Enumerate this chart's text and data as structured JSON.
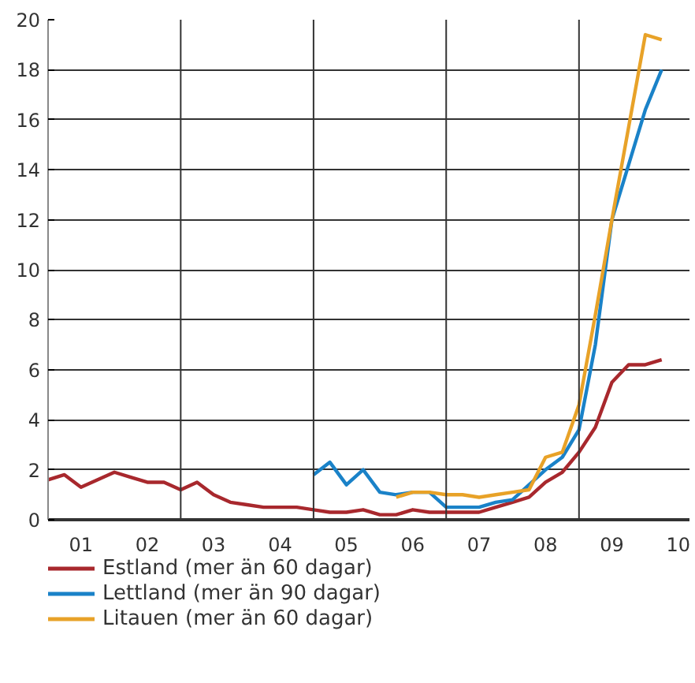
{
  "chart_data": {
    "type": "line",
    "x": [
      "2001-01",
      "2001-04",
      "2001-07",
      "2001-10",
      "2002-01",
      "2002-04",
      "2002-07",
      "2002-10",
      "2003-01",
      "2003-04",
      "2003-07",
      "2003-10",
      "2004-01",
      "2004-04",
      "2004-07",
      "2004-10",
      "2005-01",
      "2005-04",
      "2005-07",
      "2005-10",
      "2006-01",
      "2006-04",
      "2006-07",
      "2006-10",
      "2007-01",
      "2007-04",
      "2007-07",
      "2007-10",
      "2008-01",
      "2008-04",
      "2008-07",
      "2008-10",
      "2009-01",
      "2009-04",
      "2009-07",
      "2009-10",
      "2010-01",
      "2010-04"
    ],
    "series": [
      {
        "name": "Estland (mer än 60 dagar)",
        "color": "#a8282d",
        "values": [
          1.6,
          1.8,
          1.3,
          1.6,
          1.9,
          1.7,
          1.5,
          1.5,
          1.2,
          1.5,
          1.0,
          0.7,
          0.6,
          0.5,
          0.5,
          0.5,
          0.4,
          0.3,
          0.3,
          0.4,
          0.2,
          0.2,
          0.4,
          0.3,
          0.3,
          0.3,
          0.3,
          0.5,
          0.7,
          0.9,
          1.5,
          1.9,
          2.7,
          3.7,
          5.5,
          6.2,
          6.2,
          6.4
        ]
      },
      {
        "name": "Lettland (mer än 90 dagar)",
        "color": "#1a82c8",
        "x": [
          "2005-01",
          "2005-04",
          "2005-07",
          "2005-10",
          "2006-01",
          "2006-04",
          "2006-07",
          "2006-10",
          "2007-01",
          "2007-04",
          "2007-07",
          "2007-10",
          "2008-01",
          "2008-04",
          "2008-07",
          "2008-10",
          "2009-01",
          "2009-04",
          "2009-07",
          "2009-10",
          "2010-01",
          "2010-04"
        ],
        "values": [
          1.8,
          2.3,
          1.4,
          2.0,
          1.1,
          1.0,
          1.1,
          1.1,
          0.5,
          0.5,
          0.5,
          0.7,
          0.8,
          1.4,
          2.0,
          2.5,
          3.6,
          7.0,
          12.0,
          14.2,
          16.4,
          18.0
        ]
      },
      {
        "name": "Litauen (mer än 60 dagar)",
        "color": "#e8a228",
        "x": [
          "2006-04",
          "2006-07",
          "2006-10",
          "2007-01",
          "2007-04",
          "2007-07",
          "2007-10",
          "2008-01",
          "2008-04",
          "2008-07",
          "2008-10",
          "2009-01",
          "2009-04",
          "2009-07",
          "2009-10",
          "2010-01",
          "2010-04"
        ],
        "values": [
          0.9,
          1.1,
          1.1,
          1.0,
          1.0,
          0.9,
          1.0,
          1.1,
          1.2,
          2.5,
          2.7,
          4.6,
          8.2,
          12.0,
          15.7,
          19.4,
          19.2
        ]
      }
    ],
    "xlim": [
      "2001-01",
      "2010-09"
    ],
    "xticks": [
      {
        "value": "2001-07",
        "label": "01"
      },
      {
        "value": "2002-07",
        "label": "02"
      },
      {
        "value": "2003-07",
        "label": "03"
      },
      {
        "value": "2004-07",
        "label": "04"
      },
      {
        "value": "2005-07",
        "label": "05"
      },
      {
        "value": "2006-07",
        "label": "06"
      },
      {
        "value": "2007-07",
        "label": "07"
      },
      {
        "value": "2008-07",
        "label": "08"
      },
      {
        "value": "2009-07",
        "label": "09"
      },
      {
        "value": "2010-07",
        "label": "10"
      }
    ],
    "ylim": [
      0,
      20
    ],
    "yticks": [
      0,
      2,
      4,
      6,
      8,
      10,
      12,
      14,
      16,
      18,
      20
    ],
    "ref_lines": [
      {
        "axis": "x",
        "value": "2003-01",
        "color": "#333333"
      },
      {
        "axis": "x",
        "value": "2005-01",
        "color": "#333333"
      },
      {
        "axis": "x",
        "value": "2007-01",
        "color": "#333333"
      },
      {
        "axis": "x",
        "value": "2009-01",
        "color": "#333333"
      }
    ],
    "grid": "y",
    "legend": "bottom",
    "line_style": "solid"
  }
}
